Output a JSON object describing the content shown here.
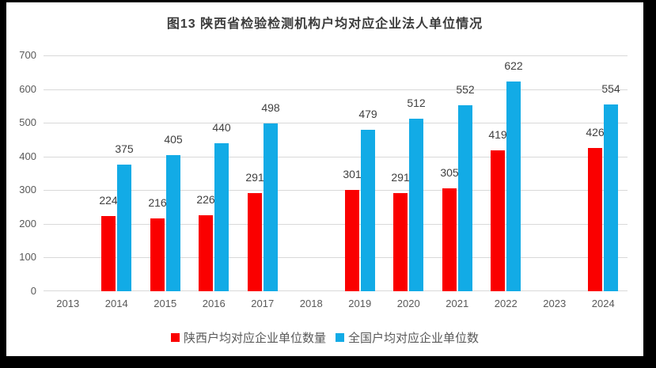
{
  "colors": {
    "background": "#000000",
    "panel": "#ffffff",
    "grid": "#d9d9d9",
    "axis_text": "#595959",
    "data_label_text": "#404040",
    "title_text": "#3b3b3b",
    "series_shaanxi": "#fa0000",
    "series_national": "#12abe6"
  },
  "chart_data": {
    "type": "bar",
    "title": "图13  陕西省检验检测机构户均对应企业法人单位情况",
    "categories": [
      "2013",
      "2014",
      "2015",
      "2016",
      "2017",
      "2018",
      "2019",
      "2020",
      "2021",
      "2022",
      "2023",
      "2024"
    ],
    "series": [
      {
        "key": "shaanxi",
        "name": "陕西户均对应企业单位数量",
        "color": "#fa0000",
        "values": [
          null,
          224,
          216,
          226,
          291,
          null,
          301,
          291,
          305,
          419,
          null,
          426
        ]
      },
      {
        "key": "national",
        "name": "全国户均对应企业单位数",
        "color": "#12abe6",
        "values": [
          null,
          375,
          405,
          440,
          498,
          null,
          479,
          512,
          552,
          622,
          null,
          554
        ]
      }
    ],
    "xlabel": "",
    "ylabel": "",
    "ylim": [
      0,
      700
    ],
    "ytick_step": 100,
    "grid": true,
    "legend_position": "bottom",
    "data_labels": true
  }
}
